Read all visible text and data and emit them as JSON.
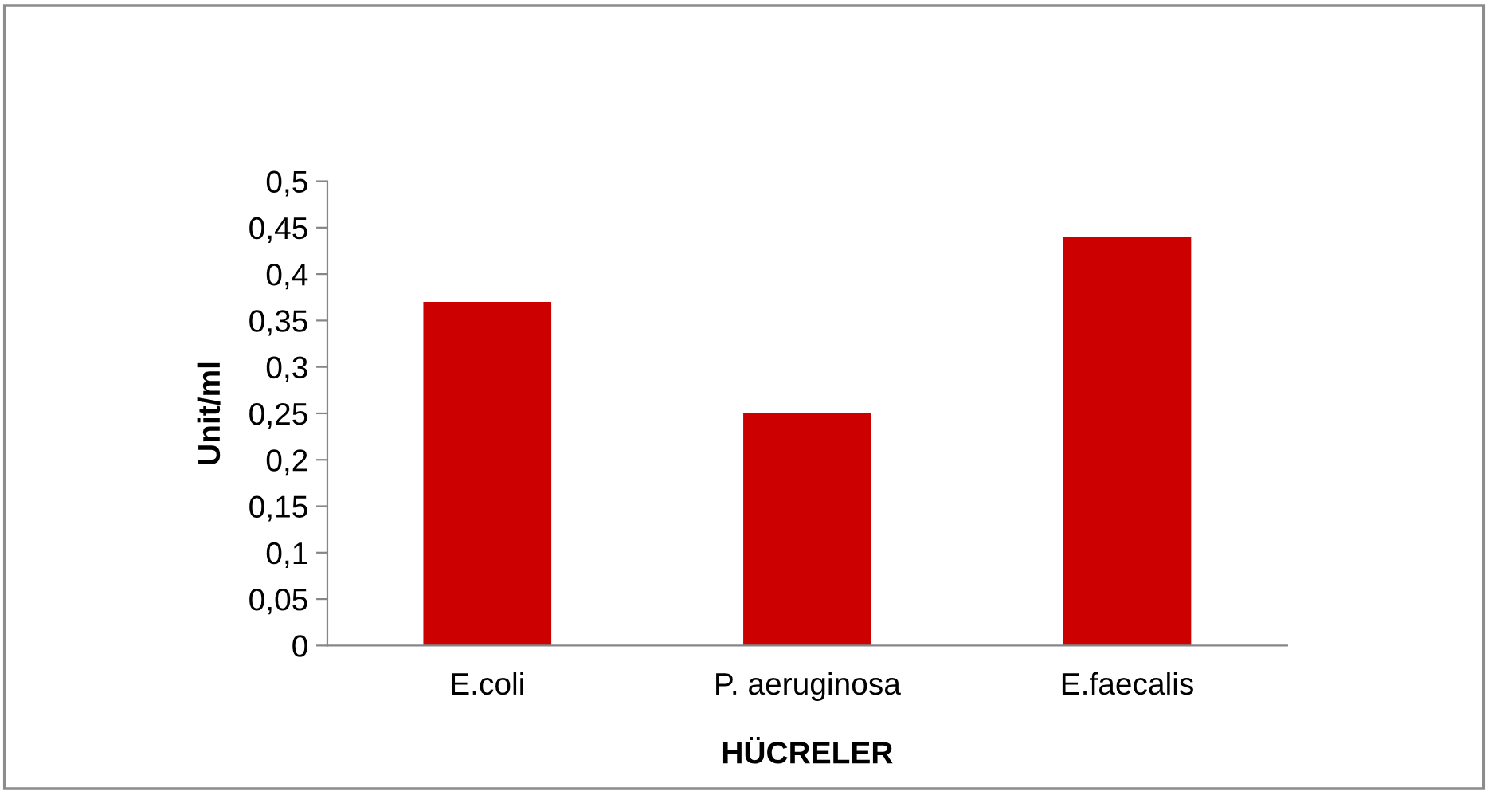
{
  "chart_data": {
    "type": "bar",
    "xlabel": "HÜCRELER",
    "ylabel": "Unit/ml",
    "categories": [
      "E.coli",
      "P. aeruginosa",
      "E.faecalis"
    ],
    "values": [
      0.37,
      0.25,
      0.44
    ],
    "color": "#cc0000",
    "ylim": [
      0,
      0.5
    ],
    "yticks": [
      0,
      {
        "value": 0.05,
        "label": "0,05"
      },
      {
        "value": 0.1,
        "label": "0,1"
      },
      {
        "value": 0.15,
        "label": "0,15"
      },
      {
        "value": 0.2,
        "label": "0,2"
      },
      {
        "value": 0.25,
        "label": "0,25"
      },
      {
        "value": 0.3,
        "label": "0,3"
      },
      {
        "value": 0.35,
        "label": "0,35"
      },
      {
        "value": 0.4,
        "label": "0,4"
      },
      {
        "value": 0.45,
        "label": "0,45"
      },
      {
        "value": 0.5,
        "label": "0,5"
      }
    ],
    "grid": false,
    "legend": false
  }
}
